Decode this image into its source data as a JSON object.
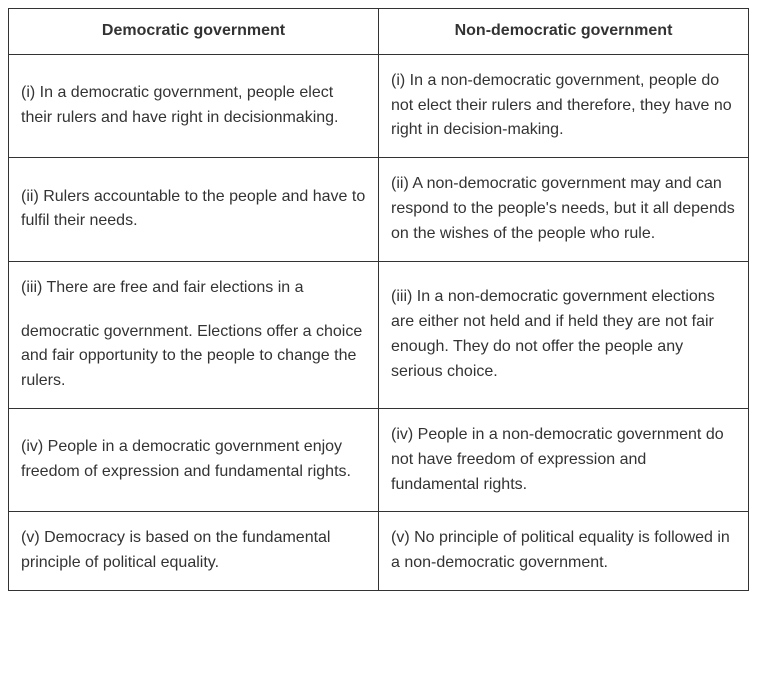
{
  "table": {
    "type": "table",
    "columns": [
      {
        "header": "Democratic government"
      },
      {
        "header": "Non-democratic government"
      }
    ],
    "rows": [
      {
        "left": "(i) In a democratic government, people elect their rulers and have right in decisionmaking.",
        "right": "(i) In a non-democratic government, people do not elect their rulers and therefore, they have no right in decision-making."
      },
      {
        "left": "(ii) Rulers accountable to the people and have to fulfil their needs.",
        "right": "(ii) A non-democratic government may and can respond to the people's needs, but it all depends on the wishes of the people who rule."
      },
      {
        "left_a": "(iii) There are free and fair elections in a",
        "left_b": "democratic government. Elections offer a choice and fair opportunity to the people to change the rulers.",
        "right": "(iii) In a non-democratic government elections are either not held and if held they are not fair enough. They do not offer the people any serious choice."
      },
      {
        "left": "(iv) People in a democratic government enjoy freedom of expression and fundamental rights.",
        "right": "(iv) People in a non-democratic government do not have freedom of expression and fundamental rights."
      },
      {
        "left": "(v) Democracy is based on the fundamental principle of political equality.",
        "right": "(v) No principle of political equality is followed in a non-democratic government."
      }
    ],
    "border_color": "#333333",
    "text_color": "#333333",
    "background_color": "#ffffff",
    "font_size_pt": 12,
    "header_font_weight": "600"
  }
}
